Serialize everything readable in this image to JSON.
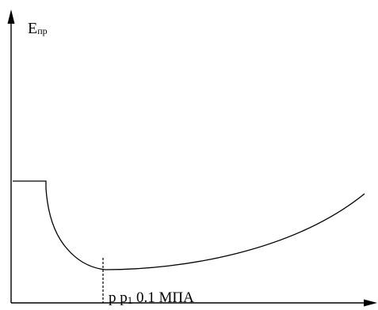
{
  "diagram": {
    "y_axis_label": {
      "main": "E",
      "subscript": "пр"
    },
    "x_annotation": {
      "part1": "р р",
      "subscript": "1",
      "part2": " 0.1 МПА"
    },
    "colors": {
      "ink": "#000000",
      "background": "#ffffff"
    }
  }
}
